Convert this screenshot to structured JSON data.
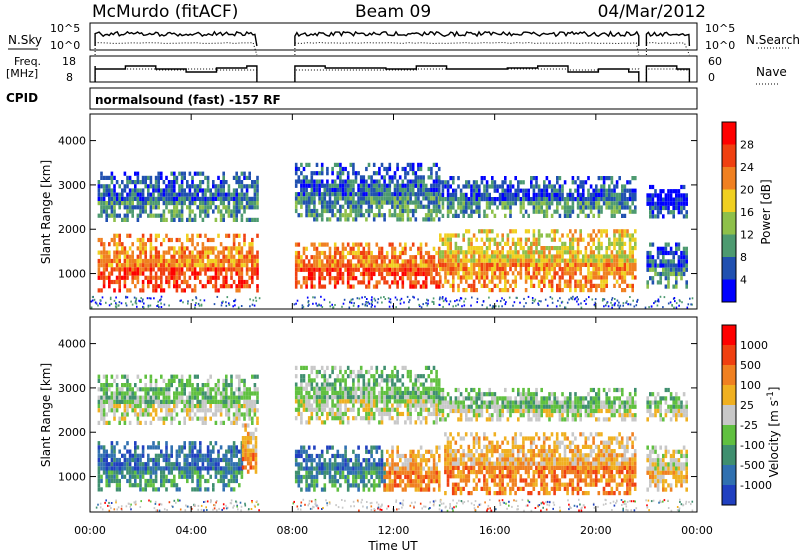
{
  "header": {
    "station": "McMurdo (fitACF)",
    "beam": "Beam 09",
    "date": "04/Mar/2012"
  },
  "panels": {
    "nsky_label": "N.Sky",
    "nsky_ticks": [
      "10^5",
      "10^0"
    ],
    "nsearch_label": "N.Search",
    "nsearch_ticks": [
      "10^5",
      "10^0"
    ],
    "freq_label_1": "Freq.",
    "freq_label_2": "[MHz]",
    "freq_ticks": [
      "18",
      "8"
    ],
    "nave_label": "Nave",
    "nave_ticks": [
      "60",
      "0"
    ],
    "cpid_label": "CPID",
    "cpid_text": "normalsound (fast) -157 RF"
  },
  "chart_data": [
    {
      "type": "heatmap",
      "name": "power",
      "ylabel": "Slant Range [km]",
      "yticks": [
        1000,
        2000,
        3000,
        4000
      ],
      "ylim": [
        200,
        4600
      ],
      "xlim": [
        0,
        24
      ],
      "colorbar": {
        "label": "Power [dB]",
        "ticks": [
          "28",
          "24",
          "20",
          "16",
          "12",
          "8",
          "4"
        ],
        "colors": [
          "#0000ff",
          "#2050b0",
          "#4d9a70",
          "#8ec04a",
          "#f0d020",
          "#f08020",
          "#f04010",
          "#ff0000"
        ]
      },
      "echo_regions": [
        {
          "t0": 0.3,
          "t1": 6.6,
          "r0": 650,
          "r1": 1900,
          "level": 6
        },
        {
          "t0": 0.3,
          "t1": 6.6,
          "r0": 2200,
          "r1": 3300,
          "level": 2
        },
        {
          "t0": 8.1,
          "t1": 13.8,
          "r0": 700,
          "r1": 1700,
          "level": 6
        },
        {
          "t0": 8.1,
          "t1": 13.8,
          "r0": 2200,
          "r1": 3500,
          "level": 2
        },
        {
          "t0": 13.8,
          "t1": 21.6,
          "r0": 650,
          "r1": 2000,
          "level": 5
        },
        {
          "t0": 13.8,
          "t1": 21.6,
          "r0": 2300,
          "r1": 3200,
          "level": 2
        },
        {
          "t0": 22.0,
          "t1": 23.6,
          "r0": 750,
          "r1": 1700,
          "level": 2
        },
        {
          "t0": 22.0,
          "t1": 23.6,
          "r0": 2300,
          "r1": 3000,
          "level": 1
        }
      ]
    },
    {
      "type": "heatmap",
      "name": "velocity",
      "ylabel": "Slant Range [km]",
      "xlabel": "Time UT",
      "yticks": [
        1000,
        2000,
        3000,
        4000
      ],
      "ylim": [
        200,
        4600
      ],
      "xlim": [
        0,
        24
      ],
      "xticks": [
        "00:00",
        "04:00",
        "08:00",
        "12:00",
        "16:00",
        "20:00",
        "00:00"
      ],
      "colorbar": {
        "label": "Velocity [m s^-1]",
        "ticks": [
          "1000",
          "500",
          "100",
          "25",
          "-25",
          "-100",
          "-500",
          "-1000"
        ],
        "colors": [
          "#2040c0",
          "#3070b0",
          "#3f8f6f",
          "#60c040",
          "#c8c8c8",
          "#f0b020",
          "#f08020",
          "#f04010",
          "#ff0000"
        ]
      },
      "echo_regions": [
        {
          "t0": 0.3,
          "t1": 6.0,
          "r0": 700,
          "r1": 1800,
          "level": 2
        },
        {
          "t0": 6.0,
          "t1": 6.6,
          "r0": 1100,
          "r1": 2200,
          "level": 6
        },
        {
          "t0": 0.3,
          "t1": 6.6,
          "r0": 2200,
          "r1": 3300,
          "level": 4
        },
        {
          "t0": 8.1,
          "t1": 11.6,
          "r0": 700,
          "r1": 1700,
          "level": 2
        },
        {
          "t0": 11.6,
          "t1": 13.8,
          "r0": 700,
          "r1": 1700,
          "level": 6
        },
        {
          "t0": 8.1,
          "t1": 13.8,
          "r0": 2200,
          "r1": 3500,
          "level": 4
        },
        {
          "t0": 14.0,
          "t1": 21.6,
          "r0": 650,
          "r1": 2000,
          "level": 6
        },
        {
          "t0": 13.8,
          "t1": 21.6,
          "r0": 2300,
          "r1": 3000,
          "level": 4
        },
        {
          "t0": 22.0,
          "t1": 23.6,
          "r0": 750,
          "r1": 1700,
          "level": 5
        },
        {
          "t0": 22.0,
          "t1": 23.6,
          "r0": 2300,
          "r1": 3000,
          "level": 4
        }
      ]
    }
  ]
}
